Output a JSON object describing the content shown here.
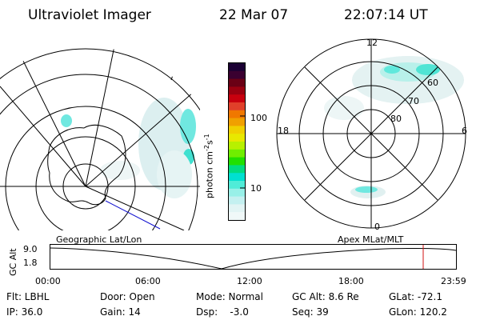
{
  "header": {
    "instrument": "Ultraviolet Imager",
    "date": "22 Mar 07",
    "time": "22:07:14 UT"
  },
  "colorbar": {
    "unit_label": "photon cm",
    "unit_exp1": "-2",
    "unit_s": "s",
    "unit_exp2": "-1",
    "ticks": [
      "100",
      "10"
    ],
    "colors": [
      "#1a0033",
      "#3a0030",
      "#6a0015",
      "#9a0010",
      "#c8000e",
      "#e0402a",
      "#f07800",
      "#f0a000",
      "#f0d000",
      "#e8e800",
      "#b8f000",
      "#70ee00",
      "#20e000",
      "#00dc80",
      "#00e0d0",
      "#50ecd8",
      "#98f0e8",
      "#c4f0f0",
      "#e2f4f4",
      "#f0f8f8"
    ]
  },
  "left_panel": {
    "caption": "Geographic Lat/Lon"
  },
  "right_panel": {
    "caption": "Apex MLat/MLT",
    "mlt_labels": {
      "top": "12",
      "right": "6",
      "bottom": "0",
      "left": "18"
    },
    "lat_labels": [
      "60",
      "70",
      "80"
    ]
  },
  "altitude_plot": {
    "ylabel": "GC Alt",
    "yticks": [
      "9.0",
      "1.8"
    ],
    "xticks": [
      "00:00",
      "06:00",
      "12:00",
      "18:00",
      "23:59"
    ],
    "marker_color": "#d01010"
  },
  "info": {
    "row1": [
      "Flt: LBHL",
      "Door: Open",
      "Mode: Normal",
      "GC Alt: 8.6 Re",
      "GLat: -72.1"
    ],
    "row2": [
      "IP: 36.0",
      "Gain: 14",
      "Dsp:    -3.0",
      "Seq: 39",
      "GLon: 120.2"
    ]
  }
}
